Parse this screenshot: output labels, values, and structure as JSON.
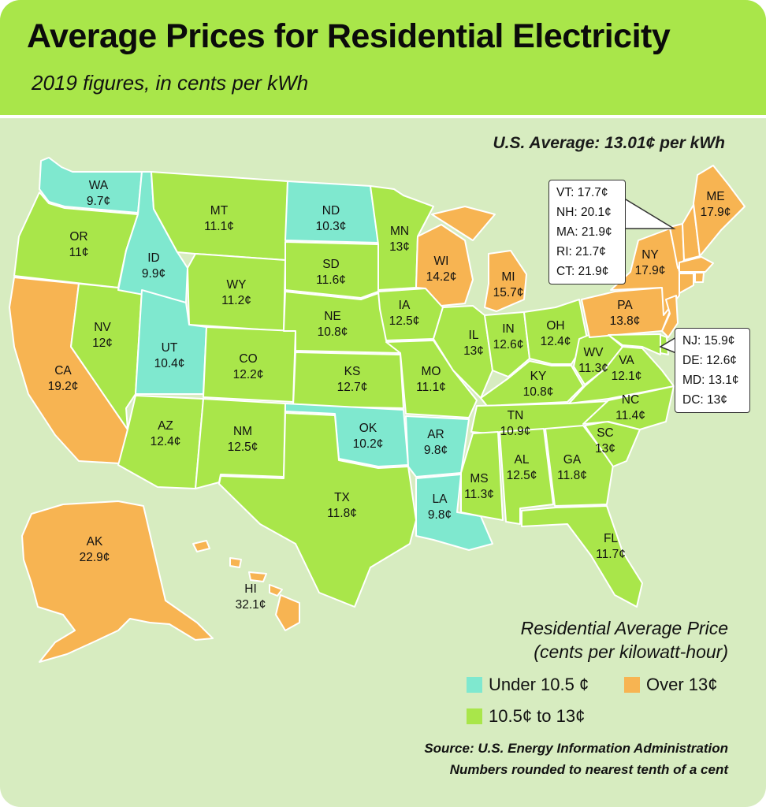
{
  "title": "Average Prices for Residential Electricity",
  "subtitle": "2019 figures, in cents per kWh",
  "us_average": "U.S. Average: 13.01¢ per kWh",
  "colors": {
    "low": "#7fe8cf",
    "mid": "#a9e64a",
    "high": "#f7b452",
    "background": "#d7ecc0",
    "header": "#a9e64a"
  },
  "states": [
    {
      "abbr": "WA",
      "price": "9.7¢",
      "category": "low"
    },
    {
      "abbr": "OR",
      "price": "11¢",
      "category": "mid"
    },
    {
      "abbr": "CA",
      "price": "19.2¢",
      "category": "high"
    },
    {
      "abbr": "ID",
      "price": "9.9¢",
      "category": "low"
    },
    {
      "abbr": "NV",
      "price": "12¢",
      "category": "mid"
    },
    {
      "abbr": "MT",
      "price": "11.1¢",
      "category": "mid"
    },
    {
      "abbr": "WY",
      "price": "11.2¢",
      "category": "mid"
    },
    {
      "abbr": "UT",
      "price": "10.4¢",
      "category": "low"
    },
    {
      "abbr": "CO",
      "price": "12.2¢",
      "category": "mid"
    },
    {
      "abbr": "AZ",
      "price": "12.4¢",
      "category": "mid"
    },
    {
      "abbr": "NM",
      "price": "12.5¢",
      "category": "mid"
    },
    {
      "abbr": "ND",
      "price": "10.3¢",
      "category": "low"
    },
    {
      "abbr": "SD",
      "price": "11.6¢",
      "category": "mid"
    },
    {
      "abbr": "NE",
      "price": "10.8¢",
      "category": "mid"
    },
    {
      "abbr": "KS",
      "price": "12.7¢",
      "category": "mid"
    },
    {
      "abbr": "OK",
      "price": "10.2¢",
      "category": "low"
    },
    {
      "abbr": "TX",
      "price": "11.8¢",
      "category": "mid"
    },
    {
      "abbr": "MN",
      "price": "13¢",
      "category": "mid"
    },
    {
      "abbr": "IA",
      "price": "12.5¢",
      "category": "mid"
    },
    {
      "abbr": "MO",
      "price": "11.1¢",
      "category": "mid"
    },
    {
      "abbr": "AR",
      "price": "9.8¢",
      "category": "low"
    },
    {
      "abbr": "LA",
      "price": "9.8¢",
      "category": "low"
    },
    {
      "abbr": "WI",
      "price": "14.2¢",
      "category": "high"
    },
    {
      "abbr": "IL",
      "price": "13¢",
      "category": "mid"
    },
    {
      "abbr": "MI",
      "price": "15.7¢",
      "category": "high"
    },
    {
      "abbr": "IN",
      "price": "12.6¢",
      "category": "mid"
    },
    {
      "abbr": "OH",
      "price": "12.4¢",
      "category": "mid"
    },
    {
      "abbr": "KY",
      "price": "10.8¢",
      "category": "mid"
    },
    {
      "abbr": "TN",
      "price": "10.9¢",
      "category": "mid"
    },
    {
      "abbr": "MS",
      "price": "11.3¢",
      "category": "mid"
    },
    {
      "abbr": "AL",
      "price": "12.5¢",
      "category": "mid"
    },
    {
      "abbr": "GA",
      "price": "11.8¢",
      "category": "mid"
    },
    {
      "abbr": "FL",
      "price": "11.7¢",
      "category": "mid"
    },
    {
      "abbr": "SC",
      "price": "13¢",
      "category": "mid"
    },
    {
      "abbr": "NC",
      "price": "11.4¢",
      "category": "mid"
    },
    {
      "abbr": "VA",
      "price": "12.1¢",
      "category": "mid"
    },
    {
      "abbr": "WV",
      "price": "11.3¢",
      "category": "mid"
    },
    {
      "abbr": "PA",
      "price": "13.8¢",
      "category": "high"
    },
    {
      "abbr": "NY",
      "price": "17.9¢",
      "category": "high"
    },
    {
      "abbr": "ME",
      "price": "17.9¢",
      "category": "high"
    },
    {
      "abbr": "AK",
      "price": "22.9¢",
      "category": "high"
    },
    {
      "abbr": "HI",
      "price": "32.1¢",
      "category": "high"
    }
  ],
  "callout_northeast": [
    "VT: 17.7¢",
    "NH: 20.1¢",
    "MA: 21.9¢",
    "RI: 21.7¢",
    "CT: 21.9¢"
  ],
  "callout_midatlantic": [
    "NJ: 15.9¢",
    "DE: 12.6¢",
    "MD: 13.1¢",
    "DC: 13¢"
  ],
  "legend": {
    "title_line1": "Residential Average Price",
    "title_line2": "(cents per kilowatt-hour)",
    "under": "Under 10.5 ¢",
    "mid": "10.5¢ to 13¢",
    "over": "Over 13¢"
  },
  "source_line1": "Source: U.S. Energy Information Administration",
  "source_line2": "Numbers rounded to nearest tenth of a cent"
}
